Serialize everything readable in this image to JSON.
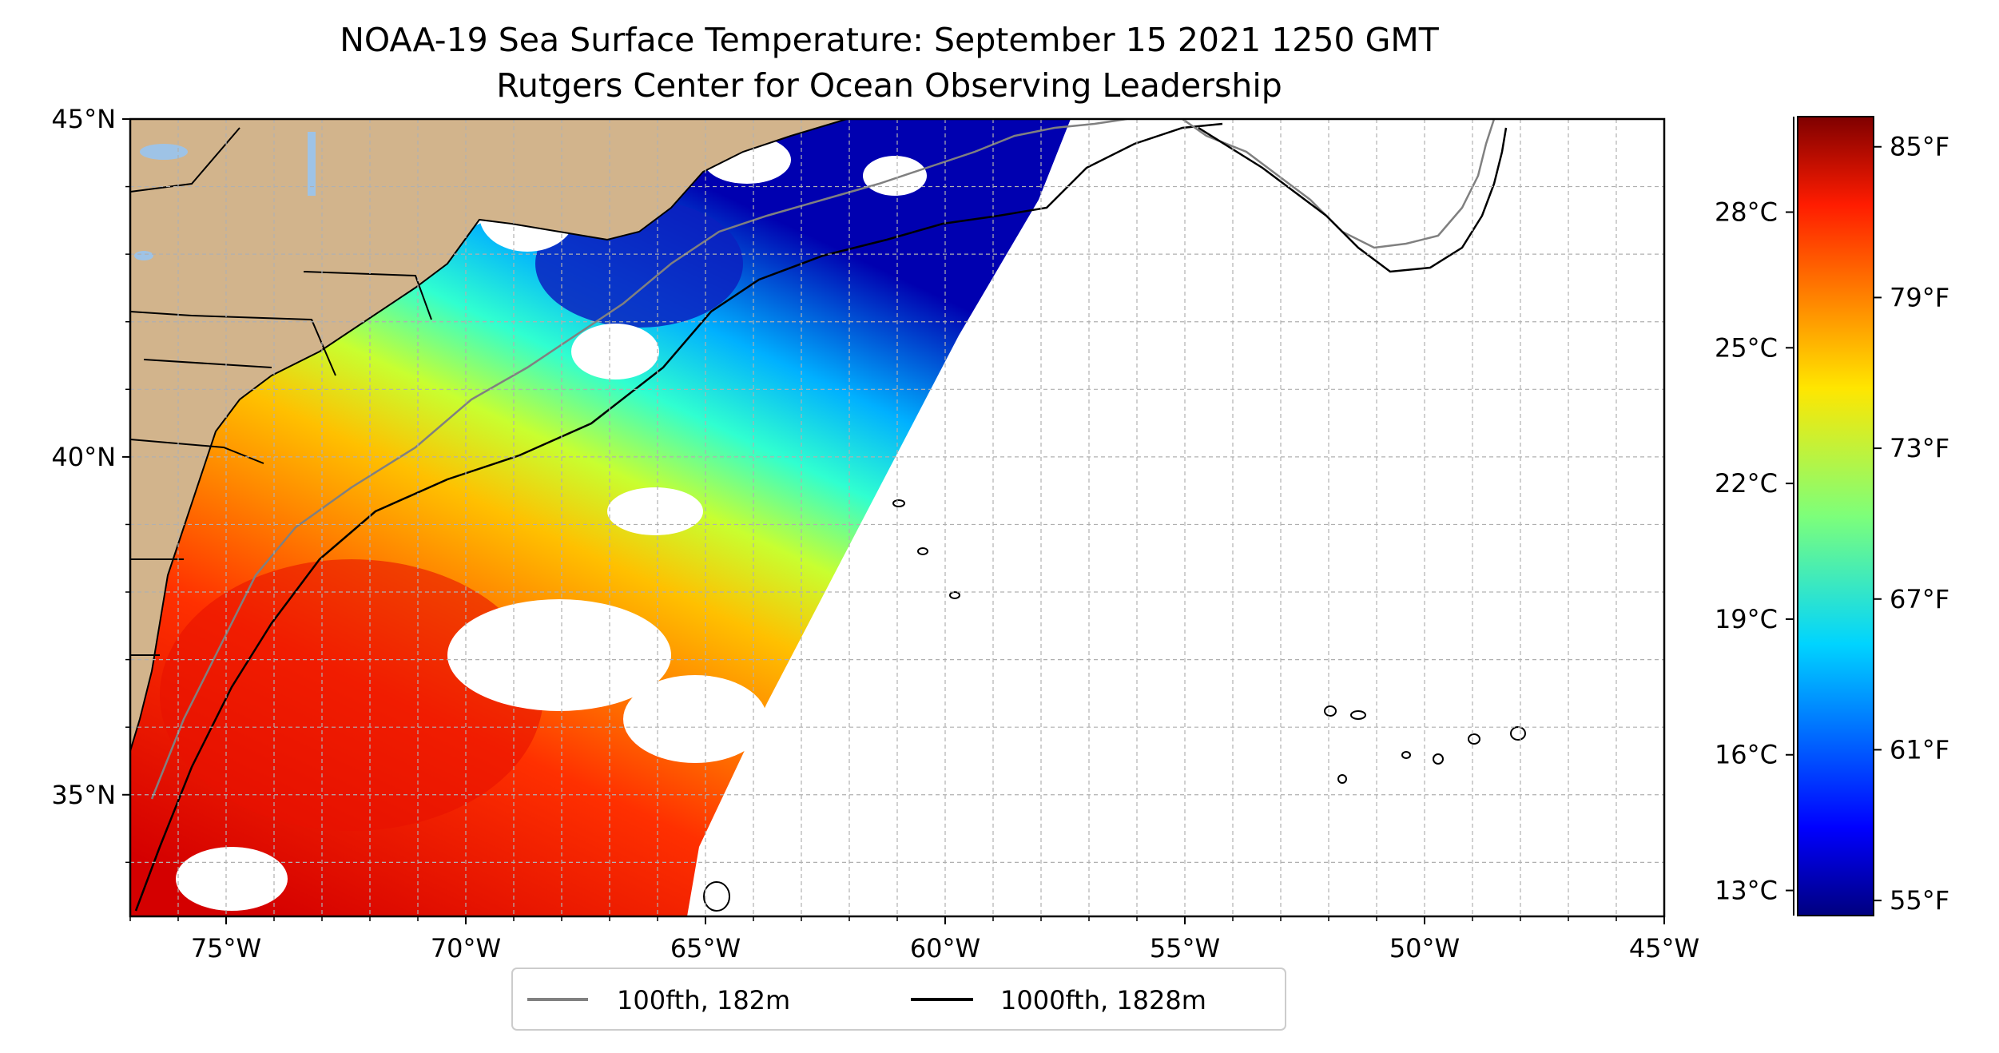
{
  "title": {
    "line1": "NOAA-19 Sea Surface Temperature: September 15 2021 1250 GMT",
    "line2": "Rutgers Center for Ocean Observing Leadership"
  },
  "map": {
    "lon_range": [
      -77,
      -45
    ],
    "lat_range": [
      33.2,
      45
    ],
    "x_ticks": [
      {
        "lon": -75,
        "label": "75°W"
      },
      {
        "lon": -70,
        "label": "70°W"
      },
      {
        "lon": -65,
        "label": "65°W"
      },
      {
        "lon": -60,
        "label": "60°W"
      },
      {
        "lon": -55,
        "label": "55°W"
      },
      {
        "lon": -50,
        "label": "50°W"
      },
      {
        "lon": -45,
        "label": "45°W"
      }
    ],
    "y_ticks": [
      {
        "lat": 45,
        "label": "45°N"
      },
      {
        "lat": 40,
        "label": "40°N"
      },
      {
        "lat": 35,
        "label": "35°N"
      }
    ],
    "grid": true,
    "land_color": "#d2b48c",
    "lake_color": "#9ec3e6"
  },
  "colorbar": {
    "celsius_ticks": [
      {
        "value": 28,
        "label": "28°C"
      },
      {
        "value": 25,
        "label": "25°C"
      },
      {
        "value": 22,
        "label": "22°C"
      },
      {
        "value": 19,
        "label": "19°C"
      },
      {
        "value": 16,
        "label": "16°C"
      },
      {
        "value": 13,
        "label": "13°C"
      }
    ],
    "fahrenheit_ticks": [
      {
        "value": 85,
        "label": "85°F"
      },
      {
        "value": 79,
        "label": "79°F"
      },
      {
        "value": 73,
        "label": "73°F"
      },
      {
        "value": 67,
        "label": "67°F"
      },
      {
        "value": 61,
        "label": "61°F"
      },
      {
        "value": 55,
        "label": "55°F"
      }
    ],
    "colormap": "jet"
  },
  "legend": {
    "items": [
      {
        "label": "100fth, 182m",
        "color": "#808080"
      },
      {
        "label": "1000fth, 1828m",
        "color": "#000000"
      }
    ]
  }
}
